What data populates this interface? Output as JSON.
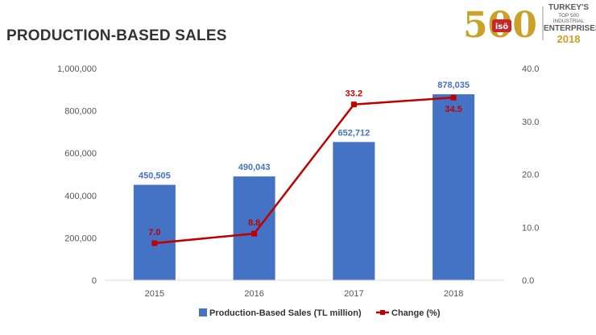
{
  "header": {
    "title": "PRODUCTION-BASED SALES"
  },
  "logo": {
    "number": "500",
    "line1": "TURKEY'S",
    "line2": "TOP 500 INDUSTRIAL",
    "line3": "ENTERPRISES",
    "year": "2018",
    "badge": "isö",
    "colors": {
      "gold": "#c9a227",
      "badge": "#c62828"
    }
  },
  "chart_data": {
    "type": "bar",
    "categories": [
      "2015",
      "2016",
      "2017",
      "2018"
    ],
    "series": [
      {
        "name": "Production-Based Sales (TL million)",
        "type": "bar",
        "axis": "left",
        "color": "#4472C4",
        "values": [
          450505,
          490043,
          652712,
          878035
        ],
        "labels": [
          "450,505",
          "490,043",
          "652,712",
          "878,035"
        ]
      },
      {
        "name": "Change (%)",
        "type": "line",
        "axis": "right",
        "color": "#C00000",
        "marker": "square",
        "values": [
          7.0,
          8.8,
          33.2,
          34.5
        ],
        "labels": [
          "7.0",
          "8.8",
          "33.2",
          "34.5"
        ]
      }
    ],
    "y_left": {
      "ylim": [
        0,
        1000000
      ],
      "ticks": [
        "0",
        "200,000",
        "400,000",
        "600,000",
        "800,000",
        "1,000,000"
      ]
    },
    "y_right": {
      "ylim": [
        0,
        40
      ],
      "ticks": [
        "0.0",
        "10.0",
        "20.0",
        "30.0",
        "40.0"
      ]
    },
    "grid": false,
    "legend": "bottom"
  }
}
